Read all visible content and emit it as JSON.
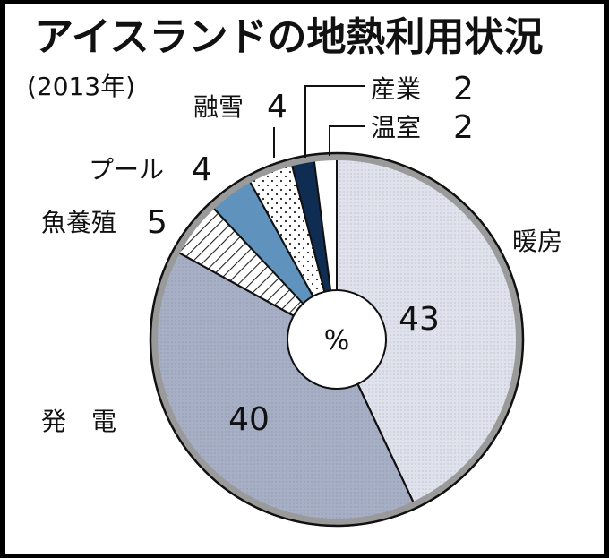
{
  "chart_data": {
    "type": "pie",
    "title": "アイスランドの地熱利用状況",
    "subtitle": "(2013年)",
    "center_label": "%",
    "slices": [
      {
        "label": "暖房",
        "value": 43,
        "color": "#dfe2ec",
        "pattern": "dots-fine"
      },
      {
        "label": "発　電",
        "value": 40,
        "color": "#a6afc5",
        "pattern": "dots-fine"
      },
      {
        "label": "魚養殖",
        "value": 5,
        "color": "#ffffff",
        "pattern": "hatch"
      },
      {
        "label": "プール",
        "value": 4,
        "color": "#5f93bd",
        "pattern": "solid"
      },
      {
        "label": "融雪",
        "value": 4,
        "color": "#ffffff",
        "pattern": "dots"
      },
      {
        "label": "産業",
        "value": 2,
        "color": "#0f2c52",
        "pattern": "solid"
      },
      {
        "label": "温室",
        "value": 2,
        "color": "#ffffff",
        "pattern": "solid"
      }
    ]
  }
}
